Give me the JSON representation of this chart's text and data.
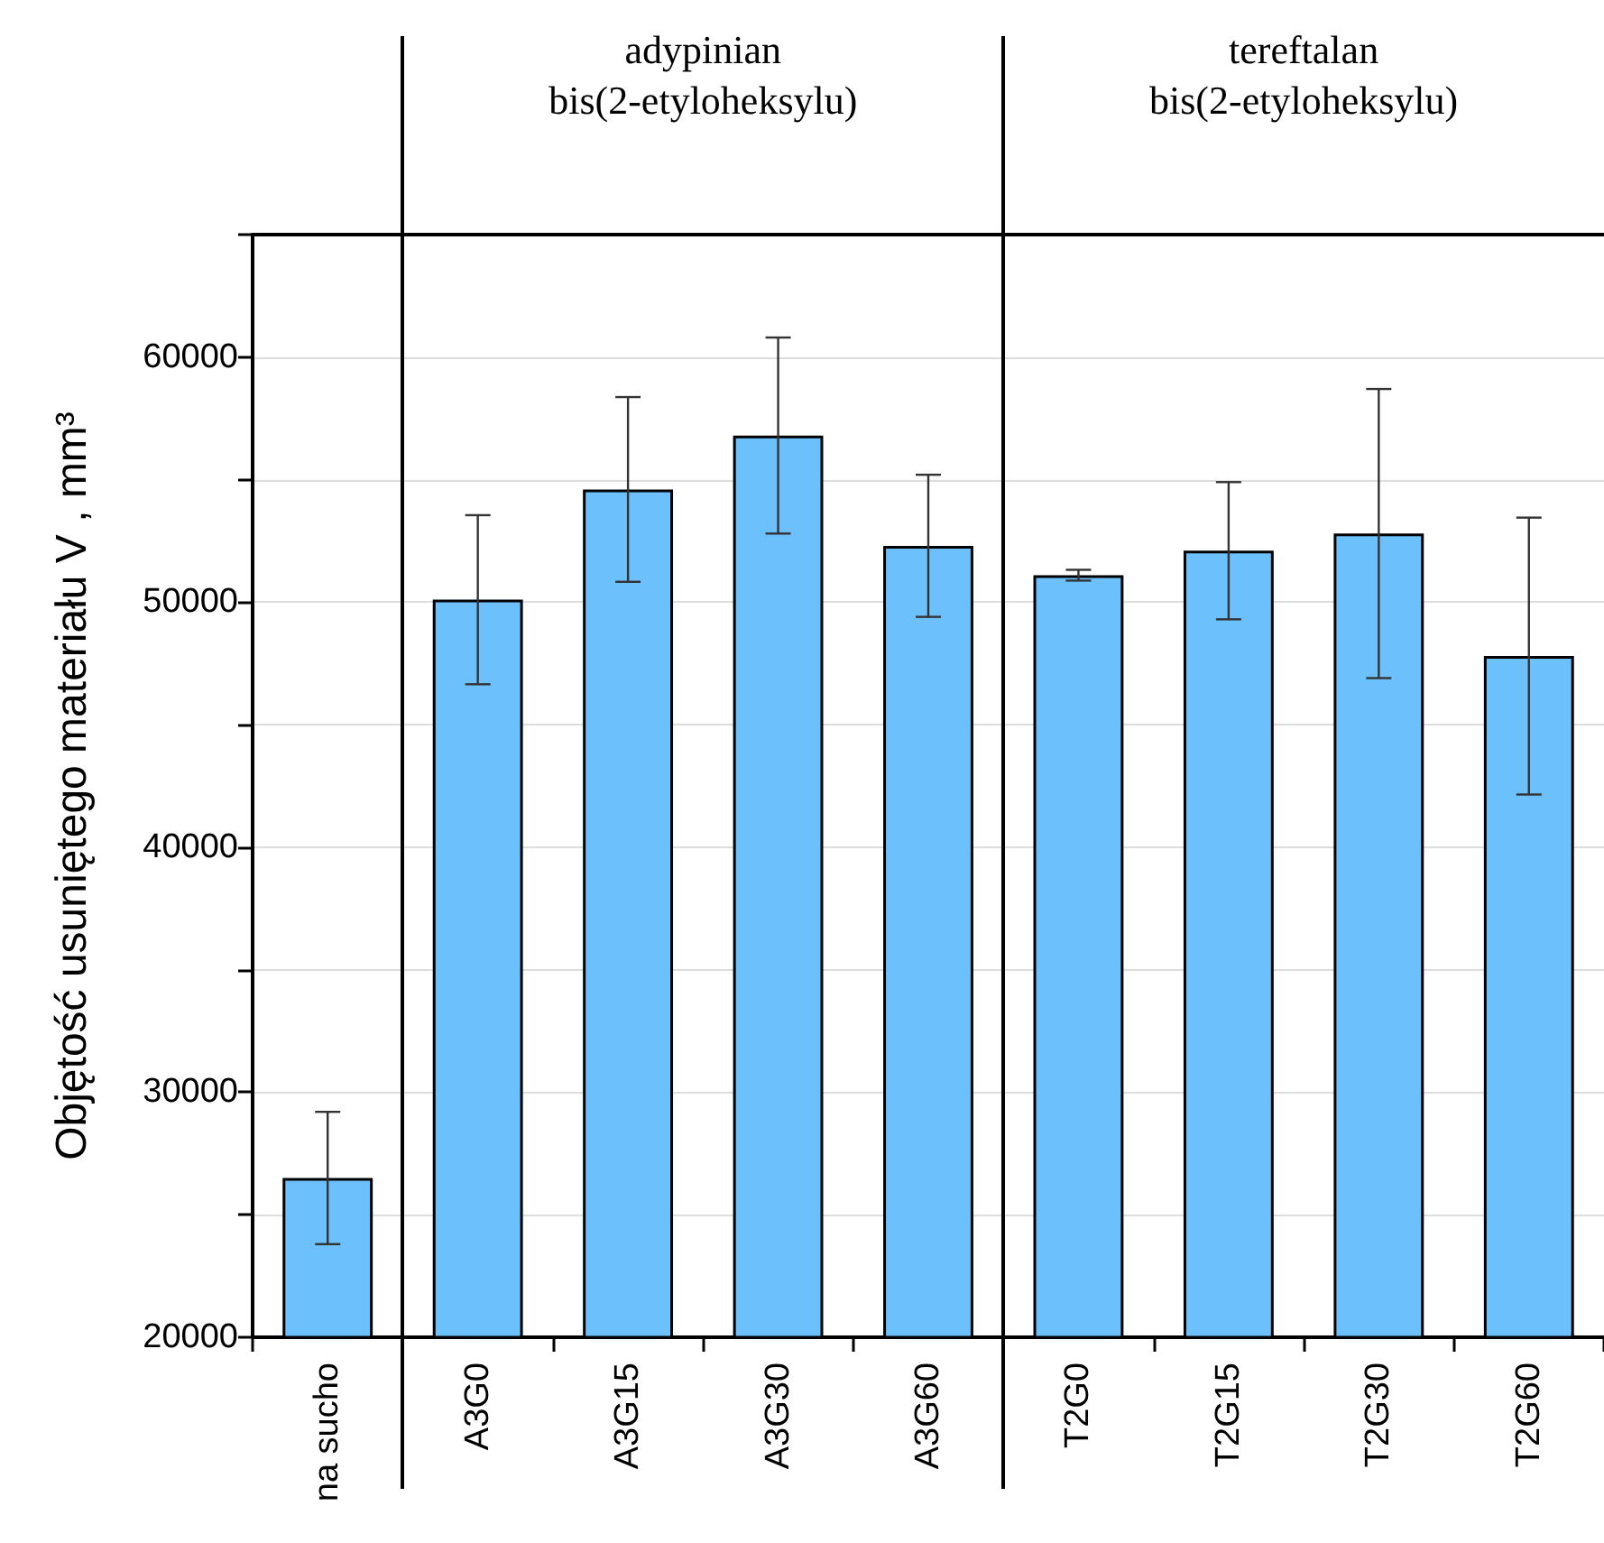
{
  "chart_data": {
    "type": "bar",
    "ylabel": "Objętość usuniętego materiału V , mm³",
    "categories": [
      "na sucho",
      "A3G0",
      "A3G15",
      "A3G30",
      "A3G60",
      "T2G0",
      "T2G15",
      "T2G30",
      "T2G60"
    ],
    "values": [
      26500,
      50100,
      54600,
      56800,
      52300,
      51100,
      52100,
      52800,
      47800
    ],
    "errors": [
      2700,
      3450,
      3770,
      4000,
      2900,
      220,
      2800,
      5900,
      5650
    ],
    "color": "#6cc0fb",
    "ylim": [
      20000,
      65000
    ],
    "yticks": [
      20000,
      {
        "value": 25000,
        "label": null
      },
      30000,
      {
        "value": 35000,
        "label": null
      },
      40000,
      {
        "value": 45000,
        "label": null
      },
      50000,
      {
        "value": 55000,
        "label": null
      },
      60000,
      {
        "value": 65000,
        "label": null
      }
    ],
    "grid": "y",
    "annotations": [
      "adypinian bis(2-etyloheksylu)",
      "tereftalan bis(2-etyloheksylu)"
    ]
  }
}
